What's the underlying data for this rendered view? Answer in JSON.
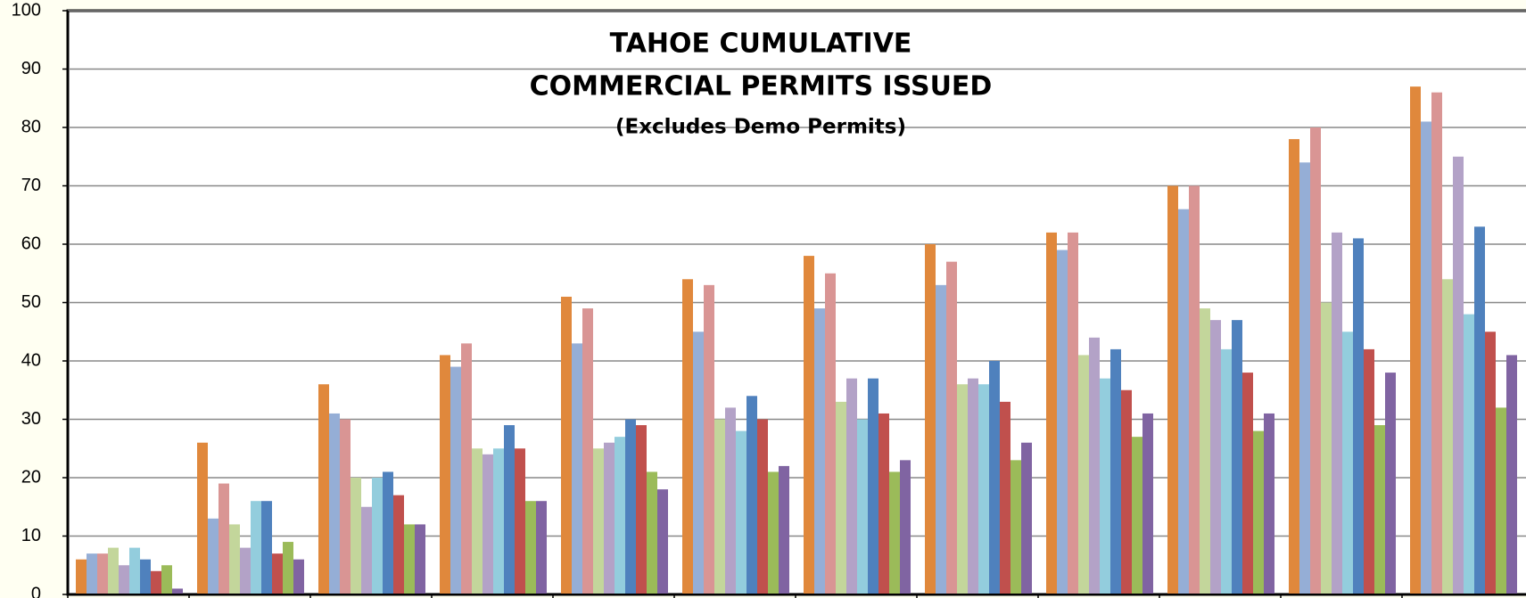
{
  "chart_data": {
    "type": "bar",
    "title": [
      "TAHOE CUMULATIVE",
      "COMMERCIAL PERMITS ISSUED"
    ],
    "subtitle": "(Excludes Demo Permits)",
    "categories": [
      null,
      null,
      null,
      null,
      null,
      null,
      null,
      null,
      null,
      null,
      null,
      null
    ],
    "series": [
      {
        "color": "#e0883c",
        "values": [
          6,
          26,
          36,
          41,
          51,
          54,
          58,
          60,
          62,
          70,
          78,
          87
        ]
      },
      {
        "color": "#95aed6",
        "values": [
          7,
          13,
          31,
          39,
          43,
          45,
          49,
          53,
          59,
          66,
          74,
          81
        ]
      },
      {
        "color": "#d99594",
        "values": [
          7,
          19,
          30,
          43,
          49,
          53,
          55,
          57,
          62,
          70,
          80,
          86
        ]
      },
      {
        "color": "#c3d69b",
        "values": [
          8,
          12,
          20,
          25,
          25,
          30,
          33,
          36,
          41,
          49,
          50,
          54
        ]
      },
      {
        "color": "#b3a2c7",
        "values": [
          5,
          8,
          15,
          24,
          26,
          32,
          37,
          37,
          44,
          47,
          62,
          75
        ]
      },
      {
        "color": "#93cddd",
        "values": [
          8,
          16,
          20,
          25,
          27,
          28,
          30,
          36,
          37,
          42,
          45,
          48
        ]
      },
      {
        "color": "#4f81bd",
        "values": [
          6,
          16,
          21,
          29,
          30,
          34,
          37,
          40,
          42,
          47,
          61,
          63
        ]
      },
      {
        "color": "#c0504d",
        "values": [
          4,
          7,
          17,
          25,
          29,
          30,
          31,
          33,
          35,
          38,
          42,
          45
        ]
      },
      {
        "color": "#9bbb59",
        "values": [
          5,
          9,
          12,
          16,
          21,
          21,
          21,
          23,
          27,
          28,
          29,
          32
        ]
      },
      {
        "color": "#8064a2",
        "values": [
          1,
          6,
          12,
          16,
          18,
          22,
          23,
          26,
          31,
          31,
          38,
          41
        ]
      }
    ],
    "ylim": [
      0,
      100
    ],
    "yticks": [
      0,
      10,
      20,
      30,
      40,
      50,
      60,
      70,
      80,
      90,
      100
    ],
    "grid": true
  }
}
